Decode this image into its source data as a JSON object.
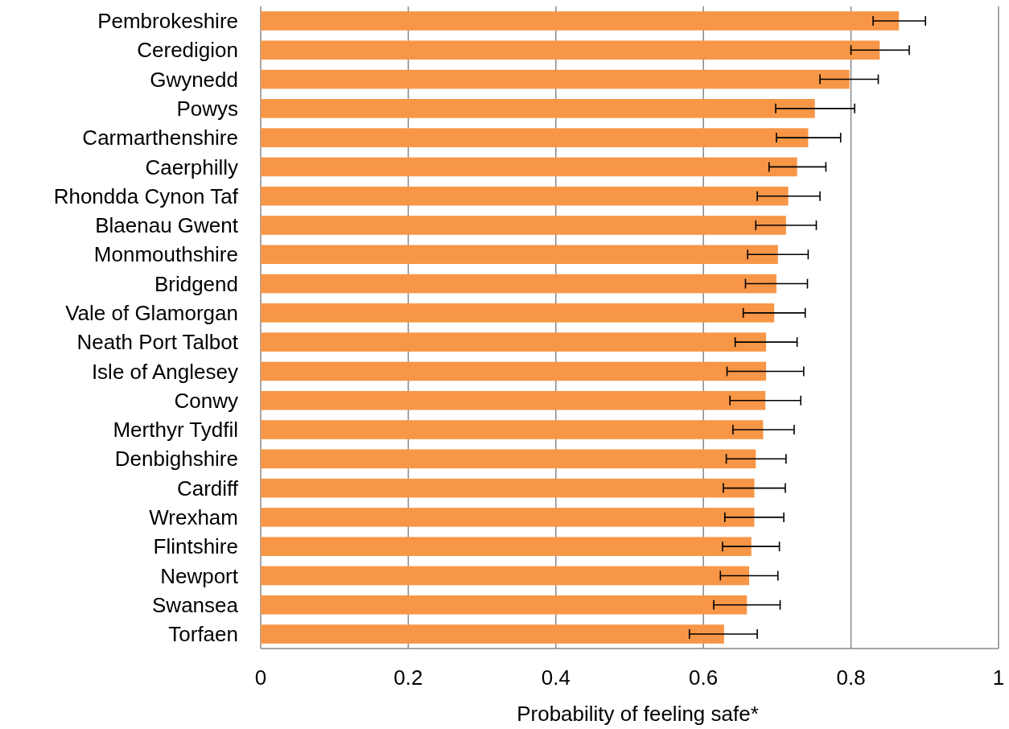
{
  "chart_data": {
    "type": "bar",
    "orientation": "horizontal",
    "xlabel": "Probability of feeling safe*",
    "categories": [
      "Pembrokeshire",
      "Ceredigion",
      "Gwynedd",
      "Powys",
      "Carmarthenshire",
      "Caerphilly",
      "Rhondda Cynon Taf",
      "Blaenau Gwent",
      "Monmouthshire",
      "Bridgend",
      "Vale of Glamorgan",
      "Neath Port Talbot",
      "Isle of Anglesey",
      "Conwy",
      "Merthyr Tydfil",
      "Denbighshire",
      "Cardiff",
      "Wrexham",
      "Flintshire",
      "Newport",
      "Swansea",
      "Torfaen"
    ],
    "values": [
      0.865,
      0.839,
      0.798,
      0.751,
      0.742,
      0.727,
      0.715,
      0.712,
      0.701,
      0.699,
      0.696,
      0.685,
      0.685,
      0.684,
      0.681,
      0.671,
      0.669,
      0.669,
      0.665,
      0.662,
      0.659,
      0.628
    ],
    "errors": [
      [
        0.83,
        0.901
      ],
      [
        0.8,
        0.879
      ],
      [
        0.758,
        0.837
      ],
      [
        0.698,
        0.805
      ],
      [
        0.699,
        0.786
      ],
      [
        0.689,
        0.766
      ],
      [
        0.673,
        0.758
      ],
      [
        0.671,
        0.753
      ],
      [
        0.66,
        0.742
      ],
      [
        0.657,
        0.741
      ],
      [
        0.654,
        0.738
      ],
      [
        0.643,
        0.727
      ],
      [
        0.632,
        0.736
      ],
      [
        0.636,
        0.732
      ],
      [
        0.64,
        0.723
      ],
      [
        0.631,
        0.712
      ],
      [
        0.627,
        0.711
      ],
      [
        0.629,
        0.709
      ],
      [
        0.626,
        0.703
      ],
      [
        0.623,
        0.701
      ],
      [
        0.614,
        0.704
      ],
      [
        0.581,
        0.673
      ]
    ],
    "color": "#f79646",
    "xlim": [
      0,
      1
    ],
    "xticks": [
      0,
      0.2,
      0.4,
      0.6,
      0.8,
      1
    ],
    "grid": "x"
  }
}
